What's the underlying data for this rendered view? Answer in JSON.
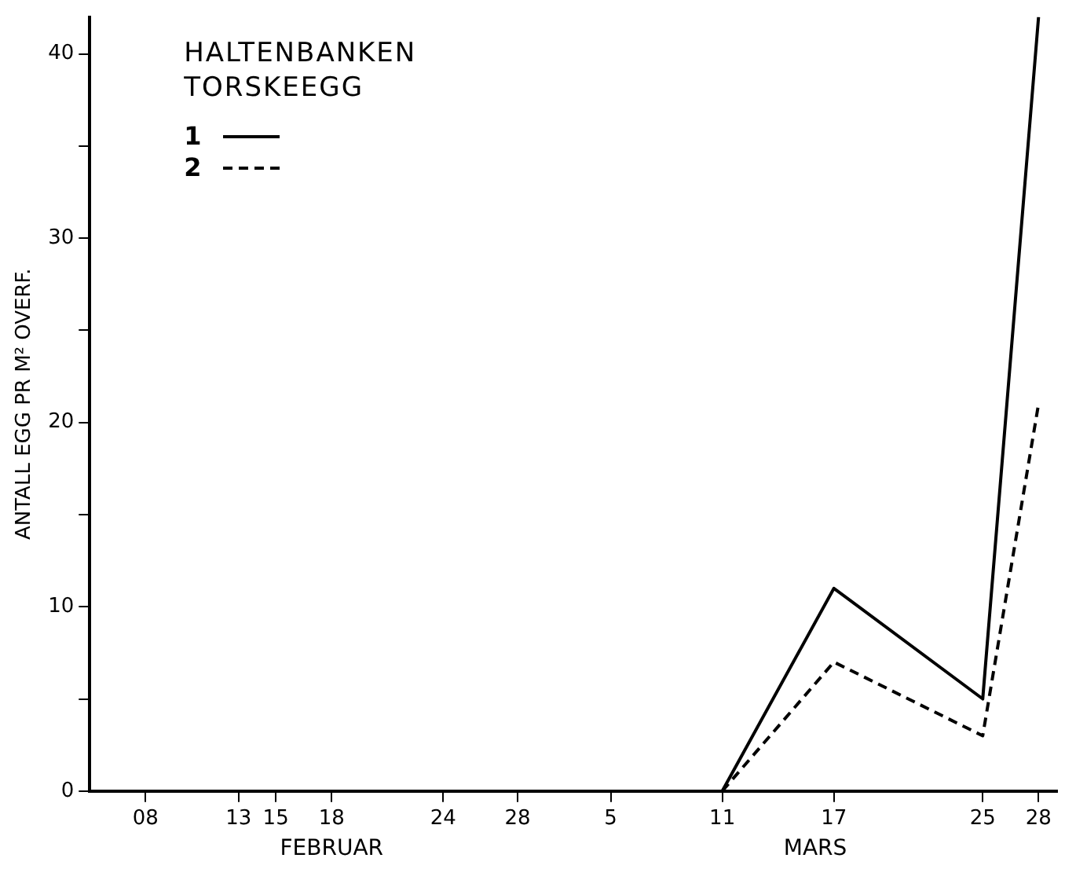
{
  "chart_data": {
    "type": "line",
    "ylabel": "ANTALL EGG PR M² OVERF.",
    "legend_title": "HALTENBANKEN\nTORSKEEGG",
    "legend": "top left",
    "grid": false,
    "marker": "none",
    "x": [
      "--03-11",
      "--03-17",
      "--03-25",
      "--03-28"
    ],
    "series": [
      {
        "name": "1",
        "color": "#000000",
        "line_style": "solid",
        "values": [
          0,
          11,
          5,
          42
        ]
      },
      {
        "name": "2",
        "color": "#000000",
        "line_style": "dashed",
        "values": [
          0,
          7,
          3,
          21
        ]
      }
    ],
    "xlim": [
      "--02-05",
      "--03-29"
    ],
    "xticks": [
      {
        "value": "--02-08",
        "label": "08"
      },
      {
        "value": "--02-13",
        "label": "13"
      },
      {
        "value": "--02-15",
        "label": "15"
      },
      {
        "value": "--02-18",
        "label": "18"
      },
      {
        "value": "--02-24",
        "label": "24"
      },
      {
        "value": "--02-28",
        "label": "28"
      },
      {
        "value": "--03-05",
        "label": "5"
      },
      {
        "value": "--03-11",
        "label": "11"
      },
      {
        "value": "--03-17",
        "label": "17"
      },
      {
        "value": "--03-25",
        "label": "25"
      },
      {
        "value": "--03-28",
        "label": "28"
      }
    ],
    "ylim": [
      0,
      42
    ],
    "yticks": [
      0,
      {
        "value": 5,
        "label": null
      },
      10,
      {
        "value": 15,
        "label": null
      },
      20,
      {
        "value": 25,
        "label": null
      },
      30,
      {
        "value": 35,
        "label": null
      },
      40
    ],
    "annotations": [
      "FEBRUAR",
      "MARS"
    ]
  }
}
